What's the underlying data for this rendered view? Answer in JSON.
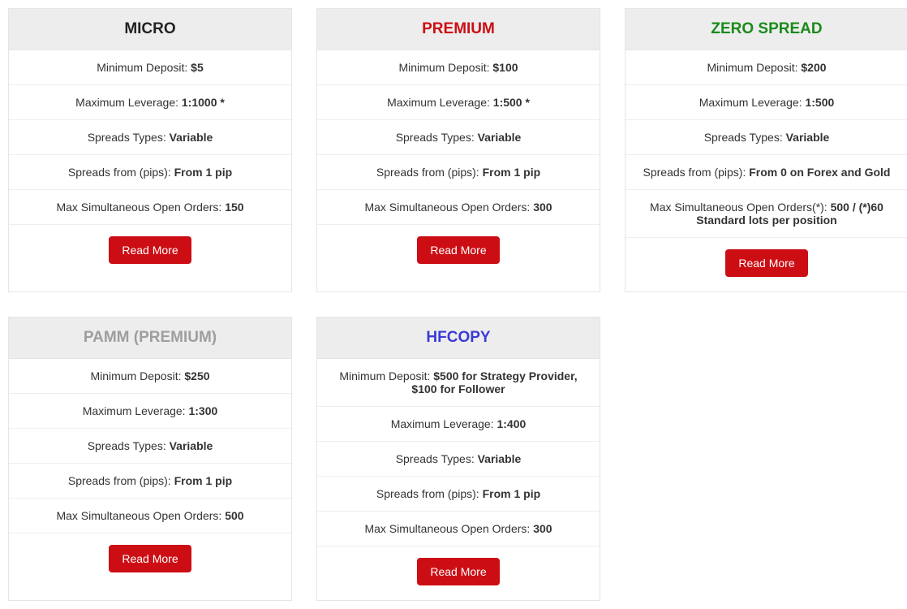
{
  "button_label": "Read More",
  "button_color": "#cc0e14",
  "plans": [
    {
      "id": "micro",
      "title": "MICRO",
      "title_color": "#222222",
      "rows": [
        {
          "label": "Minimum Deposit: ",
          "value": "$5"
        },
        {
          "label": "Maximum Leverage: ",
          "value": "1:1000 *"
        },
        {
          "label": "Spreads Types: ",
          "value": "Variable"
        },
        {
          "label": "Spreads from (pips): ",
          "value": "From 1 pip"
        },
        {
          "label": "Max Simultaneous Open Orders: ",
          "value": "150"
        }
      ]
    },
    {
      "id": "premium",
      "title": "PREMIUM",
      "title_color": "#cc0e14",
      "rows": [
        {
          "label": "Minimum Deposit: ",
          "value": "$100"
        },
        {
          "label": "Maximum Leverage: ",
          "value": "1:500 *"
        },
        {
          "label": "Spreads Types: ",
          "value": "Variable"
        },
        {
          "label": "Spreads from (pips): ",
          "value": "From 1 pip"
        },
        {
          "label": "Max Simultaneous Open Orders: ",
          "value": "300"
        }
      ]
    },
    {
      "id": "zero-spread",
      "title": "ZERO SPREAD",
      "title_color": "#1a8a1a",
      "rows": [
        {
          "label": "Minimum Deposit: ",
          "value": "$200"
        },
        {
          "label": "Maximum Leverage: ",
          "value": "1:500"
        },
        {
          "label": "Spreads Types: ",
          "value": "Variable"
        },
        {
          "label": "Spreads from (pips): ",
          "value": "From 0 on Forex and Gold"
        },
        {
          "label": "Max Simultaneous Open Orders(*): ",
          "value": "500 / (*)60 Standard lots per position"
        }
      ]
    },
    {
      "id": "pamm",
      "title": "PAMM (PREMIUM)",
      "title_color": "#9e9e9e",
      "rows": [
        {
          "label": "Minimum Deposit: ",
          "value": "$250"
        },
        {
          "label": "Maximum Leverage: ",
          "value": "1:300"
        },
        {
          "label": "Spreads Types: ",
          "value": "Variable"
        },
        {
          "label": "Spreads from (pips): ",
          "value": "From 1 pip"
        },
        {
          "label": "Max Simultaneous Open Orders: ",
          "value": "500"
        }
      ]
    },
    {
      "id": "hfcopy",
      "title": "HFCOPY",
      "title_color": "#3b3bd6",
      "rows": [
        {
          "label": "Minimum Deposit: ",
          "value": "$500 for Strategy Provider, $100 for Follower"
        },
        {
          "label": "Maximum Leverage: ",
          "value": "1:400"
        },
        {
          "label": "Spreads Types: ",
          "value": "Variable"
        },
        {
          "label": "Spreads from (pips): ",
          "value": "From 1 pip"
        },
        {
          "label": "Max Simultaneous Open Orders: ",
          "value": "300"
        }
      ]
    }
  ]
}
